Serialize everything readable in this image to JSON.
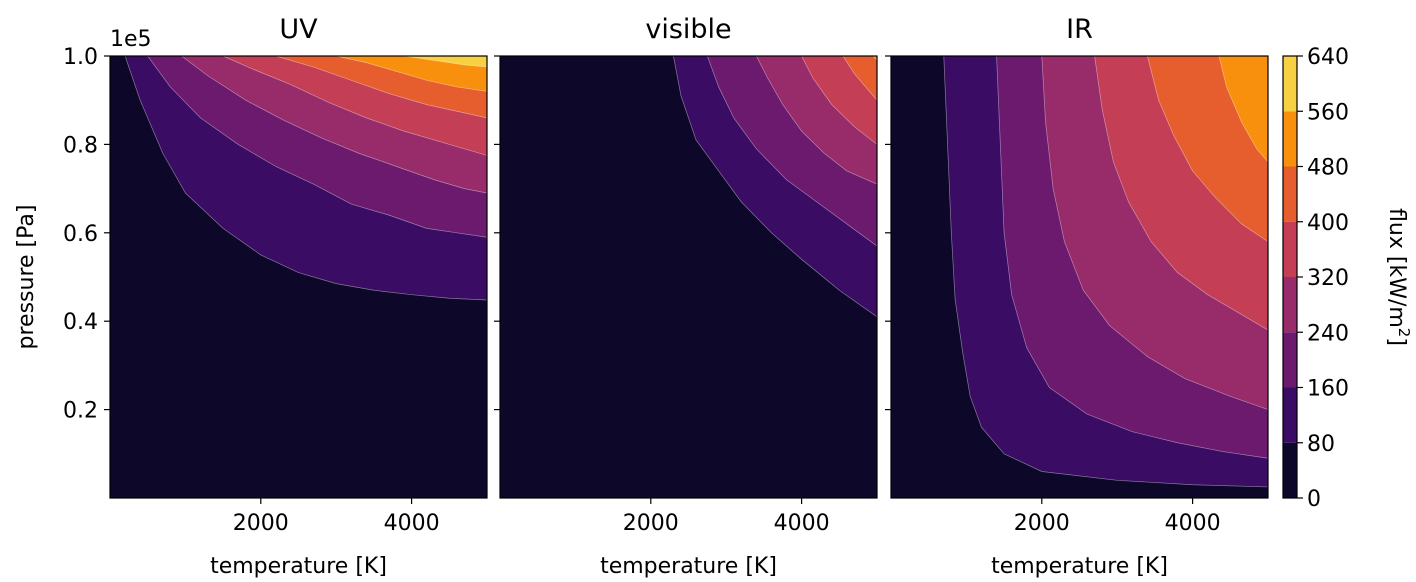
{
  "chart_data": [
    {
      "type": "contour",
      "title": "UV",
      "xlabel": "temperature [K]",
      "ylabel": "pressure [Pa]",
      "y_offset_label": "1e5",
      "xlim": [
        0,
        5000
      ],
      "ylim": [
        0,
        100000
      ],
      "xticks": [
        2000,
        4000
      ],
      "yticks": [
        20000,
        40000,
        60000,
        80000,
        100000
      ],
      "ytick_labels": [
        "0.2",
        "0.4",
        "0.6",
        "0.8",
        "1.0"
      ],
      "contour_boundaries": [
        {
          "level": 80,
          "points": [
            [
              200,
              100000
            ],
            [
              400,
              90000
            ],
            [
              700,
              78000
            ],
            [
              1000,
              69000
            ],
            [
              1500,
              61000
            ],
            [
              2000,
              55000
            ],
            [
              2500,
              51000
            ],
            [
              3000,
              48500
            ],
            [
              3500,
              47000
            ],
            [
              4000,
              46000
            ],
            [
              4500,
              45200
            ],
            [
              5000,
              44800
            ]
          ]
        },
        {
          "level": 160,
          "points": [
            [
              500,
              100000
            ],
            [
              800,
              93000
            ],
            [
              1200,
              86000
            ],
            [
              1700,
              80000
            ],
            [
              2200,
              75000
            ],
            [
              2700,
              71000
            ],
            [
              3200,
              66500
            ],
            [
              3700,
              64000
            ],
            [
              4200,
              61000
            ],
            [
              4600,
              60000
            ],
            [
              5000,
              59000
            ]
          ]
        },
        {
          "level": 240,
          "points": [
            [
              950,
              100000
            ],
            [
              1300,
              95500
            ],
            [
              1800,
              90000
            ],
            [
              2300,
              85500
            ],
            [
              2800,
              81500
            ],
            [
              3300,
              78000
            ],
            [
              3800,
              75000
            ],
            [
              4300,
              72000
            ],
            [
              4700,
              70000
            ],
            [
              5000,
              69000
            ]
          ]
        },
        {
          "level": 320,
          "points": [
            [
              1500,
              100000
            ],
            [
              1900,
              97000
            ],
            [
              2400,
              93500
            ],
            [
              2900,
              89500
            ],
            [
              3400,
              86000
            ],
            [
              3900,
              83000
            ],
            [
              4400,
              80500
            ],
            [
              5000,
              77500
            ]
          ]
        },
        {
          "level": 400,
          "points": [
            [
              2200,
              100000
            ],
            [
              2700,
              97500
            ],
            [
              3200,
              94500
            ],
            [
              3700,
              91500
            ],
            [
              4200,
              89000
            ],
            [
              4600,
              87500
            ],
            [
              5000,
              86000
            ]
          ]
        },
        {
          "level": 480,
          "points": [
            [
              3000,
              100000
            ],
            [
              3400,
              98500
            ],
            [
              3800,
              96500
            ],
            [
              4200,
              94500
            ],
            [
              4600,
              93000
            ],
            [
              5000,
              92000
            ]
          ]
        },
        {
          "level": 560,
          "points": [
            [
              3900,
              100000
            ],
            [
              4300,
              99000
            ],
            [
              4700,
              98000
            ],
            [
              5000,
              97500
            ]
          ]
        }
      ]
    },
    {
      "type": "contour",
      "title": "visible",
      "xlabel": "temperature [K]",
      "xlim": [
        0,
        5000
      ],
      "ylim": [
        0,
        100000
      ],
      "xticks": [
        2000,
        4000
      ],
      "contour_boundaries": [
        {
          "level": 80,
          "points": [
            [
              2300,
              100000
            ],
            [
              2400,
              91000
            ],
            [
              2600,
              81000
            ],
            [
              2900,
              74000
            ],
            [
              3200,
              67000
            ],
            [
              3600,
              60000
            ],
            [
              4000,
              54000
            ],
            [
              4500,
              47000
            ],
            [
              5000,
              41000
            ]
          ]
        },
        {
          "level": 160,
          "points": [
            [
              2750,
              100000
            ],
            [
              2900,
              93000
            ],
            [
              3100,
              86000
            ],
            [
              3400,
              79000
            ],
            [
              3800,
              72000
            ],
            [
              4200,
              67000
            ],
            [
              4600,
              62000
            ],
            [
              5000,
              57000
            ]
          ]
        },
        {
          "level": 240,
          "points": [
            [
              3400,
              100000
            ],
            [
              3550,
              95000
            ],
            [
              3750,
              89000
            ],
            [
              4000,
              83000
            ],
            [
              4300,
              78000
            ],
            [
              4600,
              74000
            ],
            [
              5000,
              71000
            ]
          ]
        },
        {
          "level": 320,
          "points": [
            [
              4000,
              100000
            ],
            [
              4150,
              95000
            ],
            [
              4400,
              89000
            ],
            [
              4700,
              84000
            ],
            [
              5000,
              80000
            ]
          ]
        },
        {
          "level": 400,
          "points": [
            [
              4550,
              100000
            ],
            [
              4700,
              96000
            ],
            [
              4900,
              92000
            ],
            [
              5000,
              90000
            ]
          ]
        },
        {
          "level": 480,
          "points": [
            [
              4950,
              100000
            ],
            [
              5000,
              99000
            ]
          ]
        }
      ]
    },
    {
      "type": "contour",
      "title": "IR",
      "xlabel": "temperature [K]",
      "xlim": [
        0,
        5000
      ],
      "ylim": [
        0,
        100000
      ],
      "xticks": [
        2000,
        4000
      ],
      "contour_boundaries": [
        {
          "level": 80,
          "points": [
            [
              700,
              100000
            ],
            [
              750,
              80000
            ],
            [
              800,
              60000
            ],
            [
              850,
              45000
            ],
            [
              950,
              33000
            ],
            [
              1050,
              23000
            ],
            [
              1200,
              16000
            ],
            [
              1500,
              10000
            ],
            [
              2000,
              6000
            ],
            [
              3000,
              4000
            ],
            [
              4000,
              3000
            ],
            [
              5000,
              2500
            ]
          ]
        },
        {
          "level": 160,
          "points": [
            [
              1400,
              100000
            ],
            [
              1450,
              80000
            ],
            [
              1500,
              60000
            ],
            [
              1600,
              46000
            ],
            [
              1800,
              34000
            ],
            [
              2100,
              25000
            ],
            [
              2600,
              19000
            ],
            [
              3200,
              15000
            ],
            [
              3800,
              12500
            ],
            [
              4400,
              10500
            ],
            [
              5000,
              9000
            ]
          ]
        },
        {
          "level": 240,
          "points": [
            [
              2000,
              100000
            ],
            [
              2050,
              85000
            ],
            [
              2150,
              70000
            ],
            [
              2300,
              58000
            ],
            [
              2550,
              47000
            ],
            [
              2900,
              39000
            ],
            [
              3400,
              32000
            ],
            [
              3900,
              27000
            ],
            [
              4500,
              23000
            ],
            [
              5000,
              20000
            ]
          ]
        },
        {
          "level": 320,
          "points": [
            [
              2700,
              100000
            ],
            [
              2800,
              88000
            ],
            [
              2950,
              76000
            ],
            [
              3150,
              67000
            ],
            [
              3450,
              58000
            ],
            [
              3800,
              51000
            ],
            [
              4200,
              46000
            ],
            [
              4600,
              42000
            ],
            [
              5000,
              38000
            ]
          ]
        },
        {
          "level": 400,
          "points": [
            [
              3400,
              100000
            ],
            [
              3550,
              90000
            ],
            [
              3750,
              82000
            ],
            [
              4000,
              74000
            ],
            [
              4300,
              68000
            ],
            [
              4650,
              62000
            ],
            [
              5000,
              58000
            ]
          ]
        },
        {
          "level": 480,
          "points": [
            [
              4350,
              100000
            ],
            [
              4450,
              93000
            ],
            [
              4650,
              85000
            ],
            [
              4850,
              79000
            ],
            [
              5000,
              76000
            ]
          ]
        }
      ]
    }
  ],
  "colorbar": {
    "label": "flux [kW/m",
    "label_sup": "2",
    "label_end": "]",
    "levels": [
      0,
      80,
      160,
      240,
      320,
      400,
      480,
      560,
      640
    ],
    "tick_labels": [
      "0",
      "80",
      "160",
      "240",
      "320",
      "400",
      "480",
      "560",
      "640"
    ],
    "colors": [
      "#0d0829",
      "#3a0c63",
      "#6b1a6e",
      "#982b6a",
      "#c43e55",
      "#e65e2e",
      "#f9900d",
      "#f8d044",
      "#fcfea3"
    ]
  }
}
